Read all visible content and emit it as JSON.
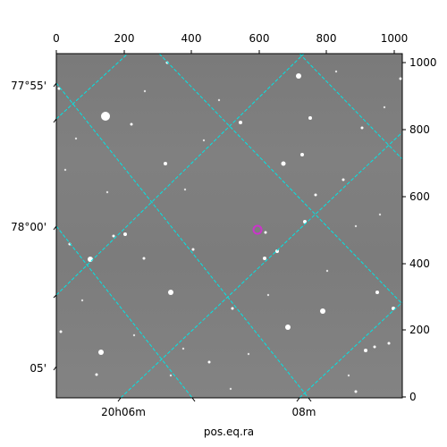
{
  "axes": {
    "top_ticks": [
      "0",
      "200",
      "400",
      "600",
      "800",
      "1000"
    ],
    "right_ticks": [
      "0",
      "200",
      "400",
      "600",
      "800",
      "1000"
    ],
    "left_ticks": [
      "77°55'",
      "78°00'",
      "05'"
    ],
    "bottom_ticks": [
      "20h06m",
      "08m"
    ],
    "bottom_title": "pos.eq.ra"
  },
  "grid": {
    "color": "#00e5e5",
    "style": "dashed"
  },
  "marker": {
    "color": "#cc33cc"
  },
  "image": {
    "background": "#808080"
  }
}
